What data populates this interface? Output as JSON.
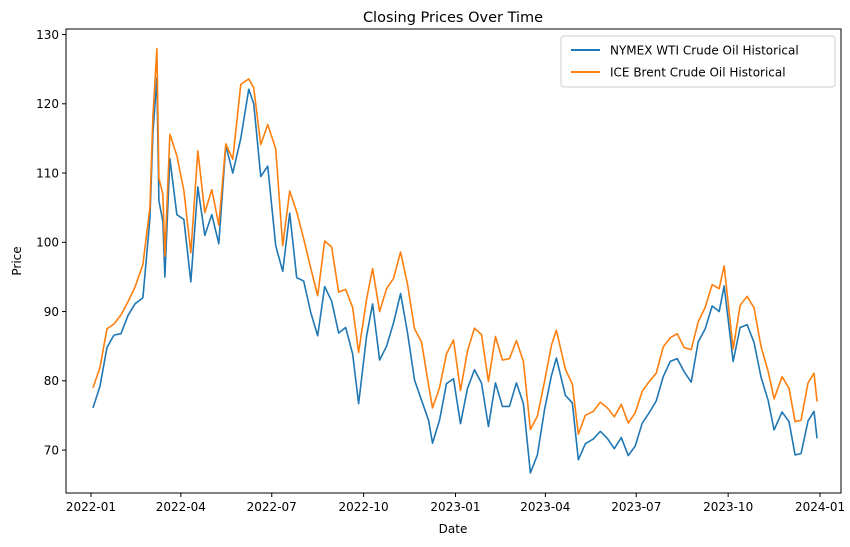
{
  "chart_data": {
    "type": "line",
    "title": "Closing Prices Over Time",
    "xlabel": "Date",
    "ylabel": "Price",
    "xlim": [
      "2021-12-07",
      "2024-01-22"
    ],
    "ylim": [
      63.8,
      130.8
    ],
    "grid": false,
    "legend_position": "top-right",
    "x_ticks": [
      "2022-01",
      "2022-04",
      "2022-07",
      "2022-10",
      "2023-01",
      "2023-04",
      "2023-07",
      "2023-10",
      "2024-01"
    ],
    "y_ticks": [
      70,
      80,
      90,
      100,
      110,
      120,
      130
    ],
    "series": [
      {
        "name": "NYMEX WTI Crude Oil Historical",
        "color": "#1f77b4",
        "points": [
          [
            "2022-01-03",
            76.1
          ],
          [
            "2022-01-10",
            79.2
          ],
          [
            "2022-01-17",
            84.8
          ],
          [
            "2022-01-24",
            86.6
          ],
          [
            "2022-01-31",
            86.8
          ],
          [
            "2022-02-07",
            89.4
          ],
          [
            "2022-02-14",
            91.1
          ],
          [
            "2022-02-22",
            92.0
          ],
          [
            "2022-03-01",
            103.4
          ],
          [
            "2022-03-04",
            115.7
          ],
          [
            "2022-03-08",
            123.7
          ],
          [
            "2022-03-10",
            106.0
          ],
          [
            "2022-03-14",
            103.0
          ],
          [
            "2022-03-16",
            95.0
          ],
          [
            "2022-03-21",
            112.1
          ],
          [
            "2022-03-28",
            104.0
          ],
          [
            "2022-04-04",
            103.3
          ],
          [
            "2022-04-11",
            94.3
          ],
          [
            "2022-04-18",
            108.0
          ],
          [
            "2022-04-25",
            101.0
          ],
          [
            "2022-05-02",
            104.0
          ],
          [
            "2022-05-09",
            99.8
          ],
          [
            "2022-05-16",
            114.0
          ],
          [
            "2022-05-23",
            110.0
          ],
          [
            "2022-05-31",
            115.0
          ],
          [
            "2022-06-08",
            122.1
          ],
          [
            "2022-06-13",
            120.0
          ],
          [
            "2022-06-20",
            109.5
          ],
          [
            "2022-06-27",
            111.0
          ],
          [
            "2022-07-05",
            99.5
          ],
          [
            "2022-07-12",
            95.8
          ],
          [
            "2022-07-19",
            104.2
          ],
          [
            "2022-07-26",
            94.9
          ],
          [
            "2022-08-02",
            94.4
          ],
          [
            "2022-08-09",
            89.9
          ],
          [
            "2022-08-16",
            86.5
          ],
          [
            "2022-08-23",
            93.6
          ],
          [
            "2022-08-30",
            91.5
          ],
          [
            "2022-09-06",
            86.9
          ],
          [
            "2022-09-13",
            87.7
          ],
          [
            "2022-09-20",
            83.9
          ],
          [
            "2022-09-26",
            76.7
          ],
          [
            "2022-10-04",
            86.5
          ],
          [
            "2022-10-10",
            91.1
          ],
          [
            "2022-10-17",
            83.0
          ],
          [
            "2022-10-24",
            85.0
          ],
          [
            "2022-10-31",
            88.4
          ],
          [
            "2022-11-07",
            92.6
          ],
          [
            "2022-11-14",
            86.9
          ],
          [
            "2022-11-21",
            80.1
          ],
          [
            "2022-11-28",
            77.2
          ],
          [
            "2022-12-05",
            74.3
          ],
          [
            "2022-12-09",
            71.0
          ],
          [
            "2022-12-16",
            74.3
          ],
          [
            "2022-12-23",
            79.6
          ],
          [
            "2022-12-30",
            80.3
          ],
          [
            "2023-01-06",
            73.8
          ],
          [
            "2023-01-13",
            78.9
          ],
          [
            "2023-01-20",
            81.6
          ],
          [
            "2023-01-27",
            79.7
          ],
          [
            "2023-02-03",
            73.4
          ],
          [
            "2023-02-10",
            79.7
          ],
          [
            "2023-02-17",
            76.3
          ],
          [
            "2023-02-24",
            76.3
          ],
          [
            "2023-03-03",
            79.7
          ],
          [
            "2023-03-10",
            76.7
          ],
          [
            "2023-03-17",
            66.7
          ],
          [
            "2023-03-24",
            69.3
          ],
          [
            "2023-03-31",
            75.7
          ],
          [
            "2023-04-07",
            80.7
          ],
          [
            "2023-04-12",
            83.3
          ],
          [
            "2023-04-21",
            77.9
          ],
          [
            "2023-04-28",
            76.8
          ],
          [
            "2023-05-04",
            68.6
          ],
          [
            "2023-05-11",
            70.9
          ],
          [
            "2023-05-19",
            71.6
          ],
          [
            "2023-05-26",
            72.7
          ],
          [
            "2023-06-02",
            71.7
          ],
          [
            "2023-06-09",
            70.2
          ],
          [
            "2023-06-16",
            71.8
          ],
          [
            "2023-06-23",
            69.2
          ],
          [
            "2023-06-30",
            70.6
          ],
          [
            "2023-07-07",
            73.9
          ],
          [
            "2023-07-14",
            75.4
          ],
          [
            "2023-07-21",
            77.1
          ],
          [
            "2023-07-28",
            80.6
          ],
          [
            "2023-08-04",
            82.8
          ],
          [
            "2023-08-11",
            83.2
          ],
          [
            "2023-08-18",
            81.3
          ],
          [
            "2023-08-25",
            79.8
          ],
          [
            "2023-09-01",
            85.6
          ],
          [
            "2023-09-08",
            87.5
          ],
          [
            "2023-09-15",
            90.8
          ],
          [
            "2023-09-22",
            90.0
          ],
          [
            "2023-09-27",
            93.7
          ],
          [
            "2023-10-06",
            82.8
          ],
          [
            "2023-10-13",
            87.7
          ],
          [
            "2023-10-20",
            88.1
          ],
          [
            "2023-10-27",
            85.5
          ],
          [
            "2023-11-03",
            80.5
          ],
          [
            "2023-11-10",
            77.2
          ],
          [
            "2023-11-16",
            72.9
          ],
          [
            "2023-11-24",
            75.5
          ],
          [
            "2023-12-01",
            74.1
          ],
          [
            "2023-12-07",
            69.3
          ],
          [
            "2023-12-13",
            69.5
          ],
          [
            "2023-12-20",
            74.2
          ],
          [
            "2023-12-26",
            75.6
          ],
          [
            "2023-12-29",
            71.7
          ]
        ]
      },
      {
        "name": "ICE Brent Crude Oil Historical",
        "color": "#ff7f0e",
        "points": [
          [
            "2022-01-03",
            78.98
          ],
          [
            "2022-01-10",
            81.9
          ],
          [
            "2022-01-17",
            87.5
          ],
          [
            "2022-01-24",
            88.2
          ],
          [
            "2022-01-31",
            89.5
          ],
          [
            "2022-02-07",
            91.4
          ],
          [
            "2022-02-14",
            93.5
          ],
          [
            "2022-02-22",
            96.8
          ],
          [
            "2022-03-01",
            105.0
          ],
          [
            "2022-03-04",
            118.1
          ],
          [
            "2022-03-08",
            127.98
          ],
          [
            "2022-03-10",
            109.3
          ],
          [
            "2022-03-14",
            106.9
          ],
          [
            "2022-03-16",
            98.0
          ],
          [
            "2022-03-21",
            115.6
          ],
          [
            "2022-03-28",
            112.5
          ],
          [
            "2022-04-04",
            107.5
          ],
          [
            "2022-04-11",
            98.5
          ],
          [
            "2022-04-18",
            113.2
          ],
          [
            "2022-04-25",
            104.3
          ],
          [
            "2022-05-02",
            107.6
          ],
          [
            "2022-05-09",
            102.5
          ],
          [
            "2022-05-16",
            114.2
          ],
          [
            "2022-05-23",
            112.0
          ],
          [
            "2022-05-31",
            122.8
          ],
          [
            "2022-06-08",
            123.6
          ],
          [
            "2022-06-13",
            122.3
          ],
          [
            "2022-06-20",
            114.1
          ],
          [
            "2022-06-27",
            117.0
          ],
          [
            "2022-07-05",
            113.5
          ],
          [
            "2022-07-12",
            99.5
          ],
          [
            "2022-07-19",
            107.4
          ],
          [
            "2022-07-26",
            104.4
          ],
          [
            "2022-08-02",
            100.5
          ],
          [
            "2022-08-09",
            96.3
          ],
          [
            "2022-08-16",
            92.3
          ],
          [
            "2022-08-23",
            100.2
          ],
          [
            "2022-08-30",
            99.3
          ],
          [
            "2022-09-06",
            92.8
          ],
          [
            "2022-09-13",
            93.2
          ],
          [
            "2022-09-20",
            90.6
          ],
          [
            "2022-09-26",
            84.1
          ],
          [
            "2022-10-04",
            91.8
          ],
          [
            "2022-10-10",
            96.2
          ],
          [
            "2022-10-17",
            90.0
          ],
          [
            "2022-10-24",
            93.3
          ],
          [
            "2022-10-31",
            94.8
          ],
          [
            "2022-11-07",
            98.6
          ],
          [
            "2022-11-14",
            93.9
          ],
          [
            "2022-11-21",
            87.5
          ],
          [
            "2022-11-28",
            85.6
          ],
          [
            "2022-12-05",
            79.4
          ],
          [
            "2022-12-09",
            76.1
          ],
          [
            "2022-12-16",
            79.0
          ],
          [
            "2022-12-23",
            83.9
          ],
          [
            "2022-12-30",
            85.9
          ],
          [
            "2023-01-06",
            78.6
          ],
          [
            "2023-01-13",
            84.3
          ],
          [
            "2023-01-20",
            87.6
          ],
          [
            "2023-01-27",
            86.7
          ],
          [
            "2023-02-03",
            79.9
          ],
          [
            "2023-02-10",
            86.4
          ],
          [
            "2023-02-17",
            83.0
          ],
          [
            "2023-02-24",
            83.2
          ],
          [
            "2023-03-03",
            85.8
          ],
          [
            "2023-03-10",
            82.8
          ],
          [
            "2023-03-17",
            72.97
          ],
          [
            "2023-03-24",
            74.9
          ],
          [
            "2023-03-31",
            79.8
          ],
          [
            "2023-04-07",
            85.1
          ],
          [
            "2023-04-12",
            87.3
          ],
          [
            "2023-04-21",
            81.7
          ],
          [
            "2023-04-28",
            79.5
          ],
          [
            "2023-05-04",
            72.3
          ],
          [
            "2023-05-11",
            75.0
          ],
          [
            "2023-05-19",
            75.6
          ],
          [
            "2023-05-26",
            76.9
          ],
          [
            "2023-06-02",
            76.1
          ],
          [
            "2023-06-09",
            74.8
          ],
          [
            "2023-06-16",
            76.6
          ],
          [
            "2023-06-23",
            73.9
          ],
          [
            "2023-06-30",
            75.4
          ],
          [
            "2023-07-07",
            78.5
          ],
          [
            "2023-07-14",
            79.9
          ],
          [
            "2023-07-21",
            81.1
          ],
          [
            "2023-07-28",
            84.9
          ],
          [
            "2023-08-04",
            86.2
          ],
          [
            "2023-08-11",
            86.8
          ],
          [
            "2023-08-18",
            84.8
          ],
          [
            "2023-08-25",
            84.5
          ],
          [
            "2023-09-01",
            88.5
          ],
          [
            "2023-09-08",
            90.6
          ],
          [
            "2023-09-15",
            93.9
          ],
          [
            "2023-09-22",
            93.3
          ],
          [
            "2023-09-27",
            96.6
          ],
          [
            "2023-10-06",
            84.6
          ],
          [
            "2023-10-13",
            90.9
          ],
          [
            "2023-10-20",
            92.2
          ],
          [
            "2023-10-27",
            90.5
          ],
          [
            "2023-11-03",
            84.9
          ],
          [
            "2023-11-10",
            81.4
          ],
          [
            "2023-11-16",
            77.4
          ],
          [
            "2023-11-24",
            80.6
          ],
          [
            "2023-12-01",
            78.9
          ],
          [
            "2023-12-07",
            74.1
          ],
          [
            "2023-12-13",
            74.3
          ],
          [
            "2023-12-20",
            79.7
          ],
          [
            "2023-12-26",
            81.1
          ],
          [
            "2023-12-29",
            77.0
          ]
        ]
      }
    ]
  }
}
